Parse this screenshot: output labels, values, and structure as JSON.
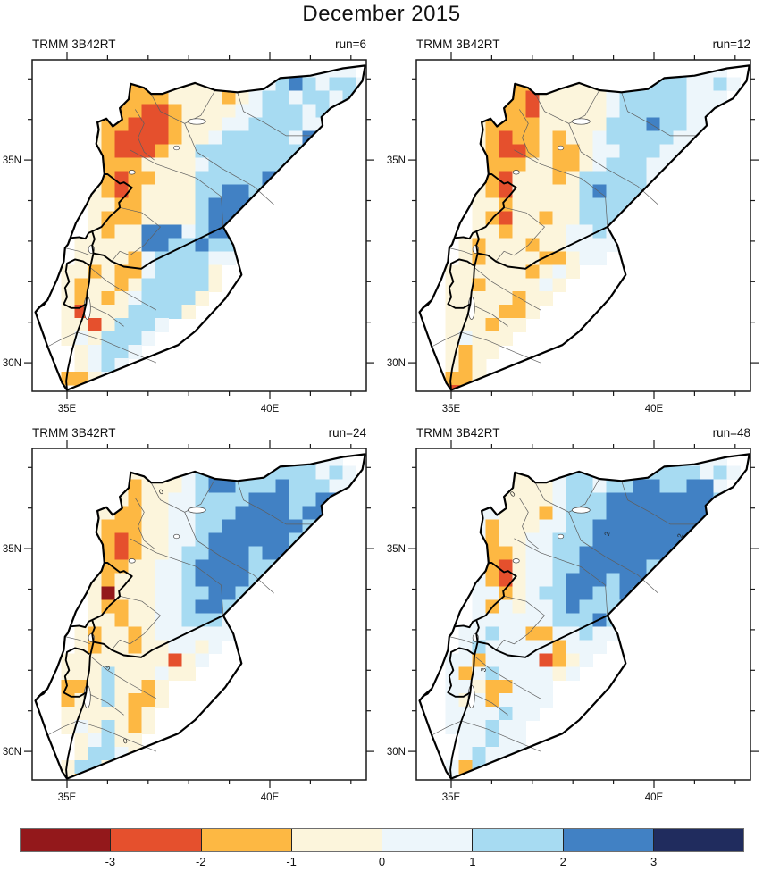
{
  "figure": {
    "title": "December 2015"
  },
  "chart_data": {
    "type": "heatmap",
    "title": "December 2015",
    "subtitle": "",
    "legend_position": "bottom",
    "colorbar": {
      "tick_labels": [
        "-3",
        "-2",
        "-1",
        "0",
        "1",
        "2",
        "3"
      ],
      "class_order": [
        "D",
        "R",
        "O",
        "c",
        "p",
        "L",
        "B",
        "N"
      ],
      "bin_edges": [
        -3,
        -2,
        -1,
        0,
        1,
        2,
        3
      ]
    },
    "class_colors": {
      "D": "#93181B",
      "R": "#E5502D",
      "O": "#FDB843",
      "c": "#FCF5DC",
      "p": "#EDF6FB",
      "L": "#A7DBF2",
      "B": "#4181C4",
      "N": "#202C5E"
    },
    "grid_geo": {
      "lon0": 34.2,
      "lat_top": 37.7,
      "dlon": 0.33,
      "dlat": 0.33
    },
    "axes": {
      "x_major": [
        {
          "lon": 35,
          "label": "35E"
        },
        {
          "lon": 40,
          "label": "40E"
        }
      ],
      "x_minor": [
        36,
        37,
        38,
        39,
        41,
        42
      ],
      "y_major": [
        {
          "lat": 35,
          "label": "35N"
        },
        {
          "lat": 30,
          "label": "30N"
        }
      ],
      "y_minor": [
        31,
        32,
        33,
        34,
        36,
        37
      ]
    },
    "panels": [
      {
        "dataset_label": "TRMM 3B42RT",
        "run_label": "run=6",
        "run": 6,
        "annotations": [],
        "grid": [
          "..............ppppppppp...",
          ".....cccccccccppppBLpppp..",
          ".....ccOOcccccOcppLBLpLLp.",
          ".....cOOOOccccOcpLLpLLpLp.",
          ".....cOORROccccppLLLpLppp.",
          "....cOORRROcccppLLLLpppp..",
          "....cORRRROccpLLLLLpBBp...",
          "....cORRROccLLLLLLLLBBp...",
          "....cOOOccccpLLLLLLBLp....",
          "....cOROOcccLLLLLBBLp.....",
          "....cOROccccLLBBLBBLp.....",
          "....ccOOccccLBBBBBLLp.....",
          "....cOOOccccLBBBBLLp......",
          "....cOccBBBpLBBLLpp.......",
          "...cccccBBLLBLLpp.........",
          "...ccccOpLLLLpp...........",
          "..ccOcOOpLLLLc............",
          "..cOccOcLLLLLc............",
          "..cOcOcpLLLLc.............",
          "..cRcccLLLLc..............",
          "..ccRcLLLp................",
          "..cpcLLLp.................",
          "...cpLLp..................",
          "...cpLp...................",
          "..OOcp....................",
          "...O......................"
        ]
      },
      {
        "dataset_label": "TRMM 3B42RT",
        "run_label": "run=12",
        "run": 12,
        "annotations": [],
        "grid": [
          "..............ppppppppp...",
          ".....cccccccccpppLLpppp...",
          ".....ccOOccccccppLLLppLp..",
          ".....cOORcccccpLLLLLppp...",
          ".....cOORcccccpLLLLLpppp..",
          "....cOOOOcccccLLLBLLpp....",
          "....cOROOcOccpLLLLLppp....",
          "....cORROcOOcppLLLppp.....",
          "....cOOOccOOcpLLLpppp.....",
          "....cORcccOcLLLLLppp......",
          "....cORcccccLBLLLpp.......",
          "....ccOcccccLLLLpp........",
          "....cORccOccLLLpp.........",
          "....ccOccccppLpp..........",
          "...cOcccOccpppp...........",
          "...cOccccOOcpp............",
          "..ccccccOcpc..............",
          "..ccOccccpc...............",
          "..cccccOcc................",
          "..ccccOOc.................",
          "..cccOcc..................",
          "..cpccc...................",
          "..cOcc....................",
          "..cOc.....................",
          "..OOc.....................",
          "..R......................."
        ]
      },
      {
        "dataset_label": "TRMM 3B42RT",
        "run_label": "run=24",
        "run": 24,
        "annotations": [
          {
            "text": "0",
            "lon": 37.35,
            "lat": 36.35,
            "rot": -30
          },
          {
            "text": "3",
            "lon": 36.05,
            "lat": 32.05,
            "rot": -80
          },
          {
            "text": "0",
            "lon": 36.45,
            "lat": 30.2,
            "rot": -15
          }
        ],
        "grid": [
          "..............ppppppppp...",
          ".....cccccccppppppLLLpp...",
          ".....ccccccpLBBLpLLLLpLp..",
          ".....ccOcccpLBBLLLBLLLpp..",
          ".....ccOccppLLLLBBBLLBBp..",
          "....ccOOccppLLLBBBBLBBpp..",
          "....cOOOccppLLBBBBBBLLp...",
          "....cOROccppLBBBBBBLLLp...",
          "....cOROccpLLBBBLBBLLp....",
          "....cOOccppLBBBBLLLLLp....",
          "....cOcccppLBBBBLLLLp.....",
          "....cDcccppLLBBLLLLp......",
          "....cOOccppLBBLLpp........",
          "....ccOccppLLLpp..........",
          "...cOccOcpppppp...........",
          "...cOccOccppcp............",
          "..ccccccccRcp.............",
          "..cccLcccpcc..............",
          "..OOcLccOc................",
          "..OccLcOOc................",
          "..cccccOc.................",
          "..cpcLcOc.................",
          "...cpLcc..................",
          "...cLLpc..................",
          "..cLLcp...................",
          "..cO......................"
        ]
      },
      {
        "dataset_label": "TRMM 3B42RT",
        "run_label": "run=48",
        "run": 48,
        "annotations": [
          {
            "text": "0",
            "lon": 36.55,
            "lat": 36.3,
            "rot": -40
          },
          {
            "text": "2",
            "lon": 38.9,
            "lat": 35.35,
            "rot": -75
          },
          {
            "text": "2",
            "lon": 40.7,
            "lat": 35.3,
            "rot": -75
          },
          {
            "text": "3",
            "lon": 35.85,
            "lat": 32.0,
            "rot": -80
          }
        ],
        "grid": [
          "..............pLLpppppp...",
          ".....ppppppLppppLLLLppp...",
          ".....ppccppLLppLLLLLLpLp..",
          ".....pccccpLLpLLBBLLBBp...",
          ".....pccccpLLLBBBBBBBBLp..",
          "....ppcccOpLLLBBBBBBBBpp..",
          "....pOcccppLLBBBBBBBBLp...",
          "....pOccppLLLBBBBBBBLLp...",
          "....pOOcppLLBBBBBBBLLp....",
          "....pORcppLLBBBBBLBBLp....",
          "....pORcppLBBBLBBLLLp.....",
          "....ppOcpLLBBLLBLLLp......",
          "....pOpcppLBLLLLpp........",
          "....ppppppLLLBLpp.........",
          "...ppLppOOppLppp..........",
          "...pLpppppOppp............",
          "..ppOppppROcp.............",
          "..pOpLppppcp..............",
          "..ppcOOppp................",
          "..pcpOpppp................",
          "..ppppLpp.................",
          "..pppLpp..................",
          "...ppLpp..................",
          "...pLppp..................",
          "..pOLpp...................",
          "..pO......................"
        ]
      }
    ]
  },
  "geo": {
    "outline": [
      [
        35.75,
        35.93
      ],
      [
        35.97,
        36.02
      ],
      [
        36.13,
        35.83
      ],
      [
        36.36,
        36.0
      ],
      [
        36.3,
        36.28
      ],
      [
        36.52,
        36.5
      ],
      [
        36.57,
        36.88
      ],
      [
        36.9,
        36.78
      ],
      [
        37.07,
        36.63
      ],
      [
        37.35,
        36.63
      ],
      [
        37.65,
        36.74
      ],
      [
        38.15,
        36.9
      ],
      [
        38.65,
        36.72
      ],
      [
        39.2,
        36.67
      ],
      [
        39.85,
        36.75
      ],
      [
        40.25,
        37.02
      ],
      [
        41.0,
        37.08
      ],
      [
        41.8,
        37.26
      ],
      [
        42.35,
        37.33
      ],
      [
        42.28,
        36.95
      ],
      [
        41.95,
        36.52
      ],
      [
        41.5,
        36.28
      ],
      [
        41.27,
        36.06
      ],
      [
        41.3,
        35.85
      ],
      [
        41.05,
        35.6
      ],
      [
        38.85,
        33.35
      ],
      [
        39.1,
        32.9
      ],
      [
        39.3,
        32.17
      ],
      [
        38.9,
        31.58
      ],
      [
        38.15,
        30.77
      ],
      [
        37.74,
        30.44
      ],
      [
        35.0,
        29.33
      ],
      [
        34.88,
        29.5
      ],
      [
        34.52,
        30.4
      ],
      [
        34.22,
        31.25
      ],
      [
        34.35,
        31.4
      ],
      [
        34.52,
        31.55
      ],
      [
        34.75,
        32.05
      ],
      [
        34.92,
        32.5
      ],
      [
        34.95,
        32.83
      ],
      [
        35.02,
        32.92
      ],
      [
        35.08,
        33.08
      ],
      [
        35.22,
        33.45
      ],
      [
        35.48,
        33.9
      ],
      [
        35.6,
        34.15
      ],
      [
        35.85,
        34.45
      ],
      [
        35.92,
        34.65
      ],
      [
        35.88,
        35.1
      ],
      [
        35.72,
        35.4
      ],
      [
        35.78,
        35.75
      ]
    ],
    "thick_lines": [
      [
        [
          35.08,
          33.08
        ],
        [
          35.3,
          33.1
        ],
        [
          35.45,
          33.06
        ],
        [
          35.53,
          33.2
        ],
        [
          35.62,
          33.24
        ],
        [
          35.85,
          33.35
        ],
        [
          36.05,
          33.6
        ],
        [
          36.3,
          33.83
        ],
        [
          36.28,
          33.95
        ],
        [
          36.42,
          34.1
        ],
        [
          36.6,
          34.32
        ],
        [
          36.4,
          34.45
        ],
        [
          36.3,
          34.42
        ],
        [
          36.0,
          34.65
        ],
        [
          35.92,
          34.65
        ]
      ],
      [
        [
          35.65,
          32.7
        ],
        [
          35.57,
          32.35
        ],
        [
          35.55,
          32.0
        ],
        [
          35.5,
          31.75
        ],
        [
          35.47,
          31.45
        ],
        [
          35.4,
          31.15
        ],
        [
          35.25,
          30.75
        ],
        [
          35.12,
          30.3
        ],
        [
          35.02,
          29.85
        ],
        [
          34.98,
          29.55
        ],
        [
          35.0,
          29.33
        ]
      ],
      [
        [
          38.85,
          33.35
        ],
        [
          37.1,
          32.5
        ],
        [
          36.83,
          32.32
        ],
        [
          36.4,
          32.37
        ],
        [
          36.1,
          32.5
        ],
        [
          35.9,
          32.65
        ],
        [
          35.65,
          32.7
        ]
      ],
      [
        [
          35.55,
          32.4
        ],
        [
          35.4,
          32.5
        ],
        [
          35.2,
          32.55
        ],
        [
          35.0,
          32.45
        ],
        [
          34.97,
          32.25
        ],
        [
          35.05,
          32.0
        ],
        [
          34.95,
          31.85
        ],
        [
          35.0,
          31.62
        ],
        [
          34.92,
          31.45
        ],
        [
          35.1,
          31.35
        ],
        [
          35.3,
          31.35
        ],
        [
          35.47,
          31.45
        ]
      ],
      [
        [
          35.62,
          33.24
        ],
        [
          35.68,
          33.05
        ],
        [
          35.62,
          32.9
        ],
        [
          35.65,
          32.7
        ]
      ],
      [
        [
          34.52,
          31.55
        ],
        [
          34.42,
          31.42
        ],
        [
          34.3,
          31.36
        ],
        [
          34.22,
          31.25
        ]
      ]
    ],
    "thin_lines": [
      [
        [
          36.68,
          36.25
        ],
        [
          36.9,
          35.9
        ],
        [
          36.75,
          35.55
        ],
        [
          36.9,
          35.2
        ],
        [
          37.15,
          35.0
        ]
      ],
      [
        [
          37.07,
          36.63
        ],
        [
          37.3,
          36.2
        ],
        [
          37.9,
          35.9
        ],
        [
          38.3,
          36.1
        ],
        [
          38.65,
          36.72
        ]
      ],
      [
        [
          39.2,
          36.67
        ],
        [
          39.35,
          36.2
        ],
        [
          39.9,
          35.9
        ],
        [
          40.4,
          35.6
        ],
        [
          41.05,
          35.6
        ]
      ],
      [
        [
          37.9,
          35.9
        ],
        [
          38.2,
          35.2
        ],
        [
          38.8,
          34.8
        ],
        [
          39.6,
          34.35
        ],
        [
          40.1,
          33.9
        ]
      ],
      [
        [
          36.55,
          35.25
        ],
        [
          37.2,
          34.9
        ],
        [
          38.2,
          34.55
        ],
        [
          38.8,
          34.1
        ],
        [
          38.85,
          33.35
        ]
      ],
      [
        [
          36.3,
          33.83
        ],
        [
          36.85,
          33.7
        ],
        [
          37.3,
          33.35
        ],
        [
          36.9,
          32.9
        ],
        [
          36.55,
          32.65
        ],
        [
          36.3,
          32.75
        ],
        [
          36.1,
          32.5
        ]
      ],
      [
        [
          35.57,
          32.35
        ],
        [
          36.0,
          32.0
        ],
        [
          36.5,
          31.7
        ],
        [
          37.2,
          31.3
        ]
      ],
      [
        [
          35.25,
          30.75
        ],
        [
          35.9,
          30.55
        ],
        [
          36.6,
          30.25
        ],
        [
          37.2,
          30.0
        ]
      ],
      [
        [
          35.47,
          31.45
        ],
        [
          36.0,
          31.2
        ],
        [
          36.4,
          30.9
        ]
      ],
      [
        [
          34.95,
          32.83
        ],
        [
          35.3,
          32.75
        ],
        [
          35.57,
          32.65
        ]
      ],
      [
        [
          34.52,
          30.4
        ],
        [
          34.9,
          30.6
        ],
        [
          35.25,
          30.75
        ]
      ]
    ],
    "lakes": [
      {
        "c": [
          38.2,
          35.95
        ],
        "rx": 0.22,
        "ry": 0.07
      },
      {
        "c": [
          37.7,
          35.3
        ],
        "rx": 0.07,
        "ry": 0.05
      },
      {
        "c": [
          36.6,
          34.7
        ],
        "rx": 0.08,
        "ry": 0.05
      },
      {
        "c": [
          35.6,
          32.8
        ],
        "rx": 0.07,
        "ry": 0.1
      },
      {
        "c": [
          35.5,
          31.35
        ],
        "rx": 0.08,
        "ry": 0.28
      }
    ]
  }
}
